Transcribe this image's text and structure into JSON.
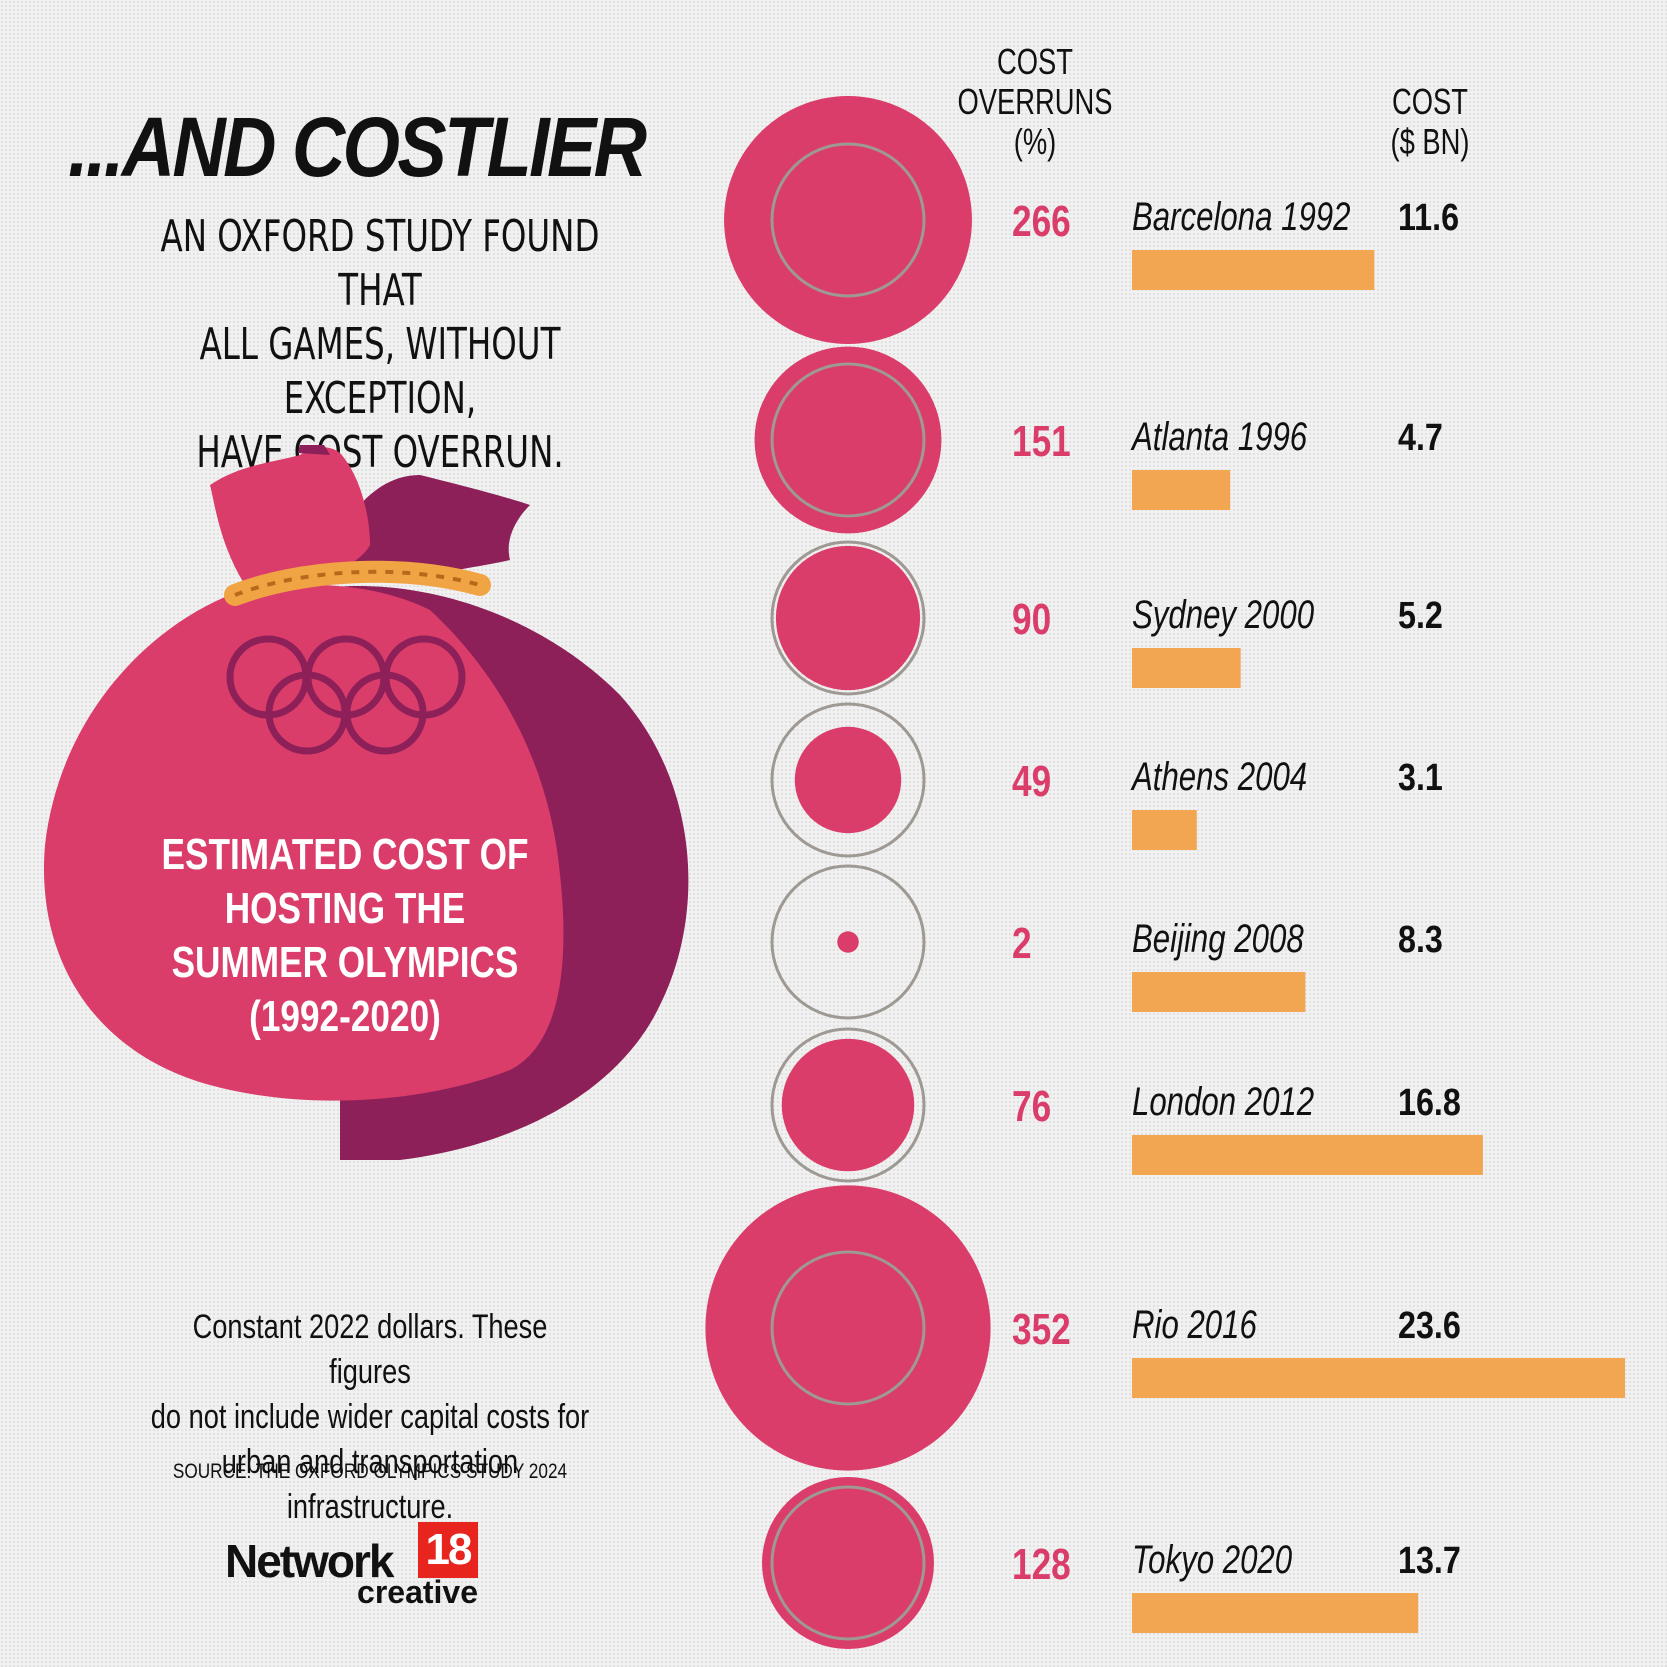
{
  "headline": "...AND COSTLIER",
  "subhead": [
    "AN OXFORD STUDY FOUND THAT",
    "ALL GAMES, WITHOUT EXCEPTION,",
    "HAVE COST OVERRUN."
  ],
  "bag_label": [
    "ESTIMATED COST OF",
    "HOSTING THE",
    "SUMMER OLYMPICS",
    "(1992-2020)"
  ],
  "footnote": [
    "Constant 2022 dollars. These figures",
    "do not include wider capital costs for",
    "urban and transportation infrastructure."
  ],
  "source": "SOURCE: THE OXFORD OLYMPICS STUDY 2024",
  "logo": {
    "word": "Network",
    "number": "18",
    "sub": "creative"
  },
  "colors": {
    "pink": "#db3d6b",
    "bar": "#f3a651",
    "ring": "#9e9993",
    "dark_bag": "#8d2058",
    "gold": "#f0a444"
  },
  "chart_data": {
    "type": "bar",
    "column_headers": {
      "overrun": [
        "COST",
        "OVERRUNS",
        "(%)"
      ],
      "cost": [
        "COST",
        "($ BN)"
      ]
    },
    "categories": [
      "Barcelona 1992",
      "Atlanta 1996",
      "Sydney 2000",
      "Athens 2004",
      "Beijing 2008",
      "London 2012",
      "Rio 2016",
      "Tokyo 2020"
    ],
    "series": [
      {
        "values": [
          266,
          151,
          90,
          49,
          2,
          76,
          352,
          128
        ]
      },
      {
        "values": [
          11.6,
          4.7,
          5.2,
          3.1,
          8.3,
          16.8,
          23.6,
          13.7
        ]
      }
    ],
    "overrun_labels": [
      "266",
      "151",
      "90",
      "49",
      "2",
      "76",
      "352",
      "128"
    ],
    "cost_labels": [
      "11.6",
      "4.7",
      "5.2",
      "3.1",
      "8.3",
      "16.8",
      "23.6",
      "13.7"
    ],
    "encoding": {
      "overrun": "circle area",
      "cost": "horizontal bar length"
    }
  }
}
